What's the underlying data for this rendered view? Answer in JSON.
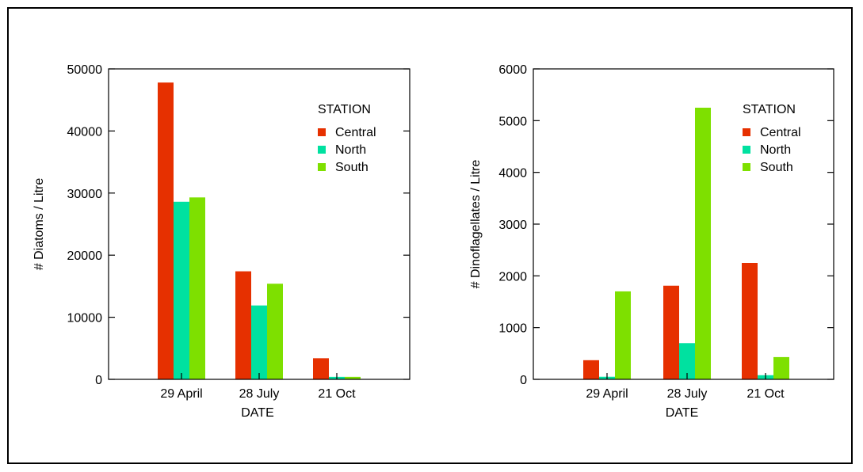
{
  "chart_data": [
    {
      "type": "bar",
      "xlabel": "DATE",
      "ylabel": "# Diatoms / Litre",
      "ylim": [
        0,
        50000
      ],
      "yticks": [
        0,
        10000,
        20000,
        30000,
        40000,
        50000
      ],
      "categories": [
        "29 April",
        "28 July",
        "21 Oct"
      ],
      "legend_title": "STATION",
      "legend_position": "top-right",
      "grid": false,
      "series": [
        {
          "name": "Central",
          "color": "#e63000",
          "values": [
            47800,
            17400,
            3400
          ]
        },
        {
          "name": "North",
          "color": "#00e1a0",
          "values": [
            28600,
            11900,
            400
          ]
        },
        {
          "name": "South",
          "color": "#7ee000",
          "values": [
            29300,
            15400,
            400
          ]
        }
      ]
    },
    {
      "type": "bar",
      "xlabel": "DATE",
      "ylabel": "# Dinoflagellates / Litre",
      "ylim": [
        0,
        6000
      ],
      "yticks": [
        0,
        1000,
        2000,
        3000,
        4000,
        5000,
        6000
      ],
      "categories": [
        "29 April",
        "28 July",
        "21 Oct"
      ],
      "legend_title": "STATION",
      "legend_position": "top-right",
      "grid": false,
      "series": [
        {
          "name": "Central",
          "color": "#e63000",
          "values": [
            370,
            1810,
            2250
          ]
        },
        {
          "name": "North",
          "color": "#00e1a0",
          "values": [
            50,
            700,
            80
          ]
        },
        {
          "name": "South",
          "color": "#7ee000",
          "values": [
            1700,
            5250,
            430
          ]
        }
      ]
    }
  ]
}
